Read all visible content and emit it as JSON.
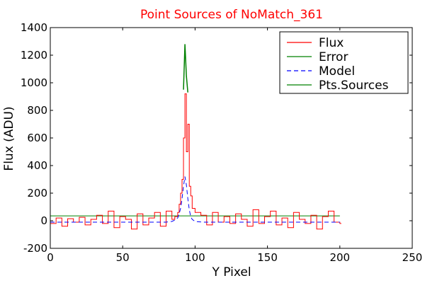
{
  "chart_data": {
    "type": "line",
    "title": "Point Sources of NoMatch_361",
    "xlabel": "Y Pixel",
    "ylabel": "Flux (ADU)",
    "xlim": [
      0,
      250
    ],
    "ylim": [
      -200,
      1400
    ],
    "xticks": [
      0,
      50,
      100,
      150,
      200,
      250
    ],
    "yticks": [
      -200,
      0,
      200,
      400,
      600,
      800,
      1000,
      1200,
      1400
    ],
    "grid": false,
    "legend_position": "top-right",
    "colors": {
      "title": "#ff0000",
      "flux": "#ff0000",
      "error": "#008000",
      "model": "#0000ff",
      "pts_sources": "#008000"
    },
    "series": [
      {
        "name": "Flux",
        "style": "steps",
        "x": [
          0,
          4,
          8,
          12,
          16,
          20,
          24,
          28,
          32,
          36,
          40,
          44,
          48,
          52,
          56,
          60,
          64,
          68,
          72,
          76,
          80,
          84,
          86,
          88,
          89,
          90,
          91,
          92,
          93,
          94,
          95,
          96,
          97,
          98,
          100,
          104,
          108,
          112,
          116,
          120,
          124,
          128,
          132,
          136,
          140,
          144,
          148,
          152,
          156,
          160,
          164,
          168,
          172,
          176,
          180,
          184,
          188,
          192,
          196,
          200
        ],
        "y": [
          -20,
          20,
          -40,
          15,
          -10,
          25,
          -30,
          10,
          40,
          -20,
          70,
          -50,
          30,
          10,
          -60,
          50,
          -30,
          20,
          60,
          -40,
          70,
          10,
          30,
          60,
          120,
          200,
          300,
          600,
          920,
          500,
          700,
          250,
          180,
          90,
          60,
          40,
          -30,
          60,
          -10,
          30,
          -20,
          50,
          10,
          -40,
          80,
          -20,
          30,
          70,
          -30,
          20,
          -50,
          60,
          10,
          -20,
          40,
          -60,
          30,
          70,
          -10,
          -20
        ]
      },
      {
        "name": "Error",
        "x": [
          0,
          200
        ],
        "y": [
          35,
          35
        ]
      },
      {
        "name": "Model",
        "style": "dashed",
        "x": [
          0,
          80,
          84,
          86,
          88,
          89,
          90,
          91,
          92,
          93,
          94,
          95,
          96,
          97,
          98,
          100,
          105,
          200
        ],
        "y": [
          -10,
          -10,
          -5,
          5,
          20,
          50,
          90,
          160,
          250,
          320,
          260,
          160,
          80,
          30,
          10,
          -5,
          -10,
          -10
        ]
      },
      {
        "name": "Pts.Sources",
        "x": [
          92,
          93,
          94,
          95
        ],
        "y": [
          950,
          1280,
          1050,
          930
        ]
      }
    ]
  }
}
